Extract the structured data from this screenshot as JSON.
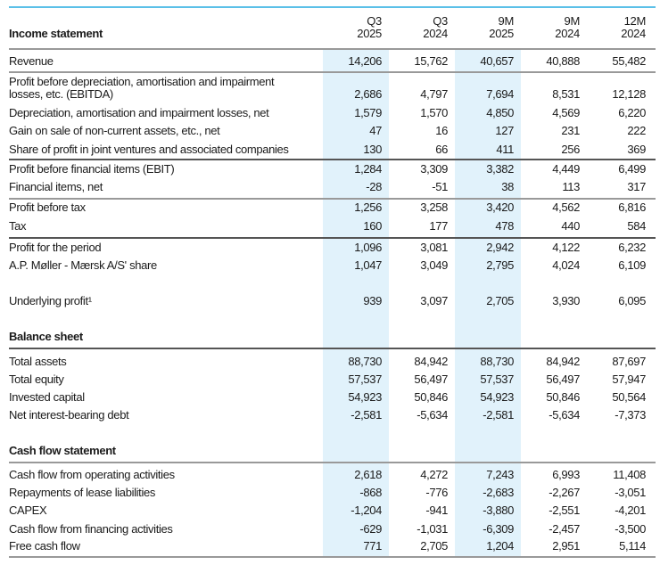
{
  "columns": [
    {
      "line1": "Q3",
      "line2": "2025",
      "highlight": true
    },
    {
      "line1": "Q3",
      "line2": "2024",
      "highlight": false
    },
    {
      "line1": "9M",
      "line2": "2025",
      "highlight": true
    },
    {
      "line1": "9M",
      "line2": "2024",
      "highlight": false
    },
    {
      "line1": "12M",
      "line2": "2024",
      "highlight": false
    }
  ],
  "colors": {
    "accent_line": "#5bc0e8",
    "highlight_column": "#e1f2fb"
  },
  "sections": [
    {
      "title": "Income statement",
      "rows": [
        {
          "label": "Revenue",
          "values": [
            "14,206",
            "15,762",
            "40,657",
            "40,888",
            "55,482"
          ]
        },
        {
          "label": "Profit before depreciation, amortisation and impairment",
          "label2": "losses, etc. (EBITDA)",
          "values": [
            "2,686",
            "4,797",
            "7,694",
            "8,531",
            "12,128"
          ]
        },
        {
          "label": "Depreciation, amortisation and impairment losses, net",
          "values": [
            "1,579",
            "1,570",
            "4,850",
            "4,569",
            "6,220"
          ]
        },
        {
          "label": "Gain on sale of non-current assets, etc., net",
          "values": [
            "47",
            "16",
            "127",
            "231",
            "222"
          ]
        },
        {
          "label": "Share of profit in joint ventures and associated companies",
          "values": [
            "130",
            "66",
            "411",
            "256",
            "369"
          ]
        },
        {
          "label": "Profit before financial items (EBIT)",
          "values": [
            "1,284",
            "3,309",
            "3,382",
            "4,449",
            "6,499"
          ]
        },
        {
          "label": "Financial items, net",
          "values": [
            "-28",
            "-51",
            "38",
            "113",
            "317"
          ]
        },
        {
          "label": "Profit before tax",
          "values": [
            "1,256",
            "3,258",
            "3,420",
            "4,562",
            "6,816"
          ]
        },
        {
          "label": "Tax",
          "values": [
            "160",
            "177",
            "478",
            "440",
            "584"
          ]
        },
        {
          "label": "Profit for the period",
          "values": [
            "1,096",
            "3,081",
            "2,942",
            "4,122",
            "6,232"
          ]
        },
        {
          "label": "A.P. Møller - Mærsk A/S' share",
          "values": [
            "1,047",
            "3,049",
            "2,795",
            "4,024",
            "6,109"
          ]
        },
        {
          "label": "Underlying profit¹",
          "values": [
            "939",
            "3,097",
            "2,705",
            "3,930",
            "6,095"
          ]
        }
      ]
    },
    {
      "title": "Balance sheet",
      "rows": [
        {
          "label": "Total assets",
          "values": [
            "88,730",
            "84,942",
            "88,730",
            "84,942",
            "87,697"
          ]
        },
        {
          "label": "Total equity",
          "values": [
            "57,537",
            "56,497",
            "57,537",
            "56,497",
            "57,947"
          ]
        },
        {
          "label": "Invested capital",
          "values": [
            "54,923",
            "50,846",
            "54,923",
            "50,846",
            "50,564"
          ]
        },
        {
          "label": "Net interest-bearing debt",
          "values": [
            "-2,581",
            "-5,634",
            "-2,581",
            "-5,634",
            "-7,373"
          ]
        }
      ]
    },
    {
      "title": "Cash flow statement",
      "rows": [
        {
          "label": "Cash flow from operating activities",
          "values": [
            "2,618",
            "4,272",
            "7,243",
            "6,993",
            "11,408"
          ]
        },
        {
          "label": "Repayments of lease liabilities",
          "values": [
            "-868",
            "-776",
            "-2,683",
            "-2,267",
            "-3,051"
          ]
        },
        {
          "label": "CAPEX",
          "values": [
            "-1,204",
            "-941",
            "-3,880",
            "-2,551",
            "-4,201"
          ]
        },
        {
          "label": "Cash flow from financing activities",
          "values": [
            "-629",
            "-1,031",
            "-6,309",
            "-2,457",
            "-3,500"
          ]
        },
        {
          "label": "Free cash flow",
          "values": [
            "771",
            "2,705",
            "1,204",
            "2,951",
            "5,114"
          ]
        }
      ]
    }
  ]
}
